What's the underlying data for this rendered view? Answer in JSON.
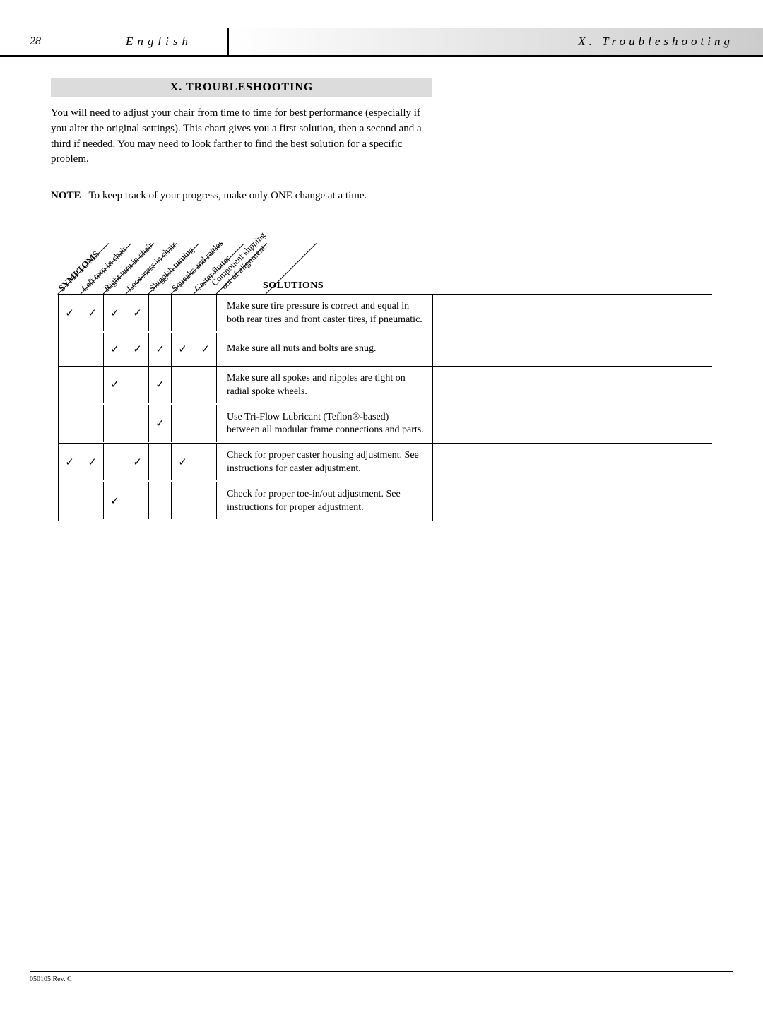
{
  "header": {
    "page_number": "28",
    "language": "English",
    "section": "X. Troubleshooting"
  },
  "title": "X. TROUBLESHOOTING",
  "intro": "You will need to adjust your chair from time to time for best performance (especially if you alter the original settings). This chart gives you a first solution, then a second and a third if needed. You may need to look farther to find the best solution for a specific problem.",
  "note_label": "NOTE–",
  "note_text": " To keep track of your progress, make only ONE change at a time.",
  "symptom_headers": [
    "SYMPTOMS",
    "Left turn in chair",
    "Right turn in chair",
    "Looseness in chair",
    "Sluggish turning",
    "Squeaks and rattles",
    "Caster flutter",
    "Component slipping out of alignment"
  ],
  "solutions_header": "SOLUTIONS",
  "checkmark": "✓",
  "rows": [
    {
      "checks": [
        true,
        true,
        true,
        true,
        false,
        false,
        false
      ],
      "solution": "Make sure tire pressure is correct and equal in both rear tires and front caster tires, if pneumatic.",
      "tall": true
    },
    {
      "checks": [
        false,
        false,
        true,
        true,
        true,
        true,
        true
      ],
      "solution": "Make sure all nuts and bolts are snug.",
      "tall": false
    },
    {
      "checks": [
        false,
        false,
        true,
        false,
        true,
        false,
        false
      ],
      "solution": "Make sure all spokes and nipples are tight on radial spoke wheels.",
      "tall": true
    },
    {
      "checks": [
        false,
        false,
        false,
        false,
        true,
        false,
        false
      ],
      "solution": "Use Tri-Flow Lubricant (Teflon®-based) between all modular frame connections and parts.",
      "tall": true
    },
    {
      "checks": [
        true,
        true,
        false,
        true,
        false,
        true,
        false
      ],
      "solution": "Check for proper caster housing adjustment. See instructions for caster adjustment.",
      "tall": true
    },
    {
      "checks": [
        false,
        false,
        true,
        false,
        false,
        false,
        false
      ],
      "solution": "Check for proper toe-in/out adjustment. See instructions for proper adjustment.",
      "tall": true
    }
  ],
  "footer": "050105 Rev. C"
}
